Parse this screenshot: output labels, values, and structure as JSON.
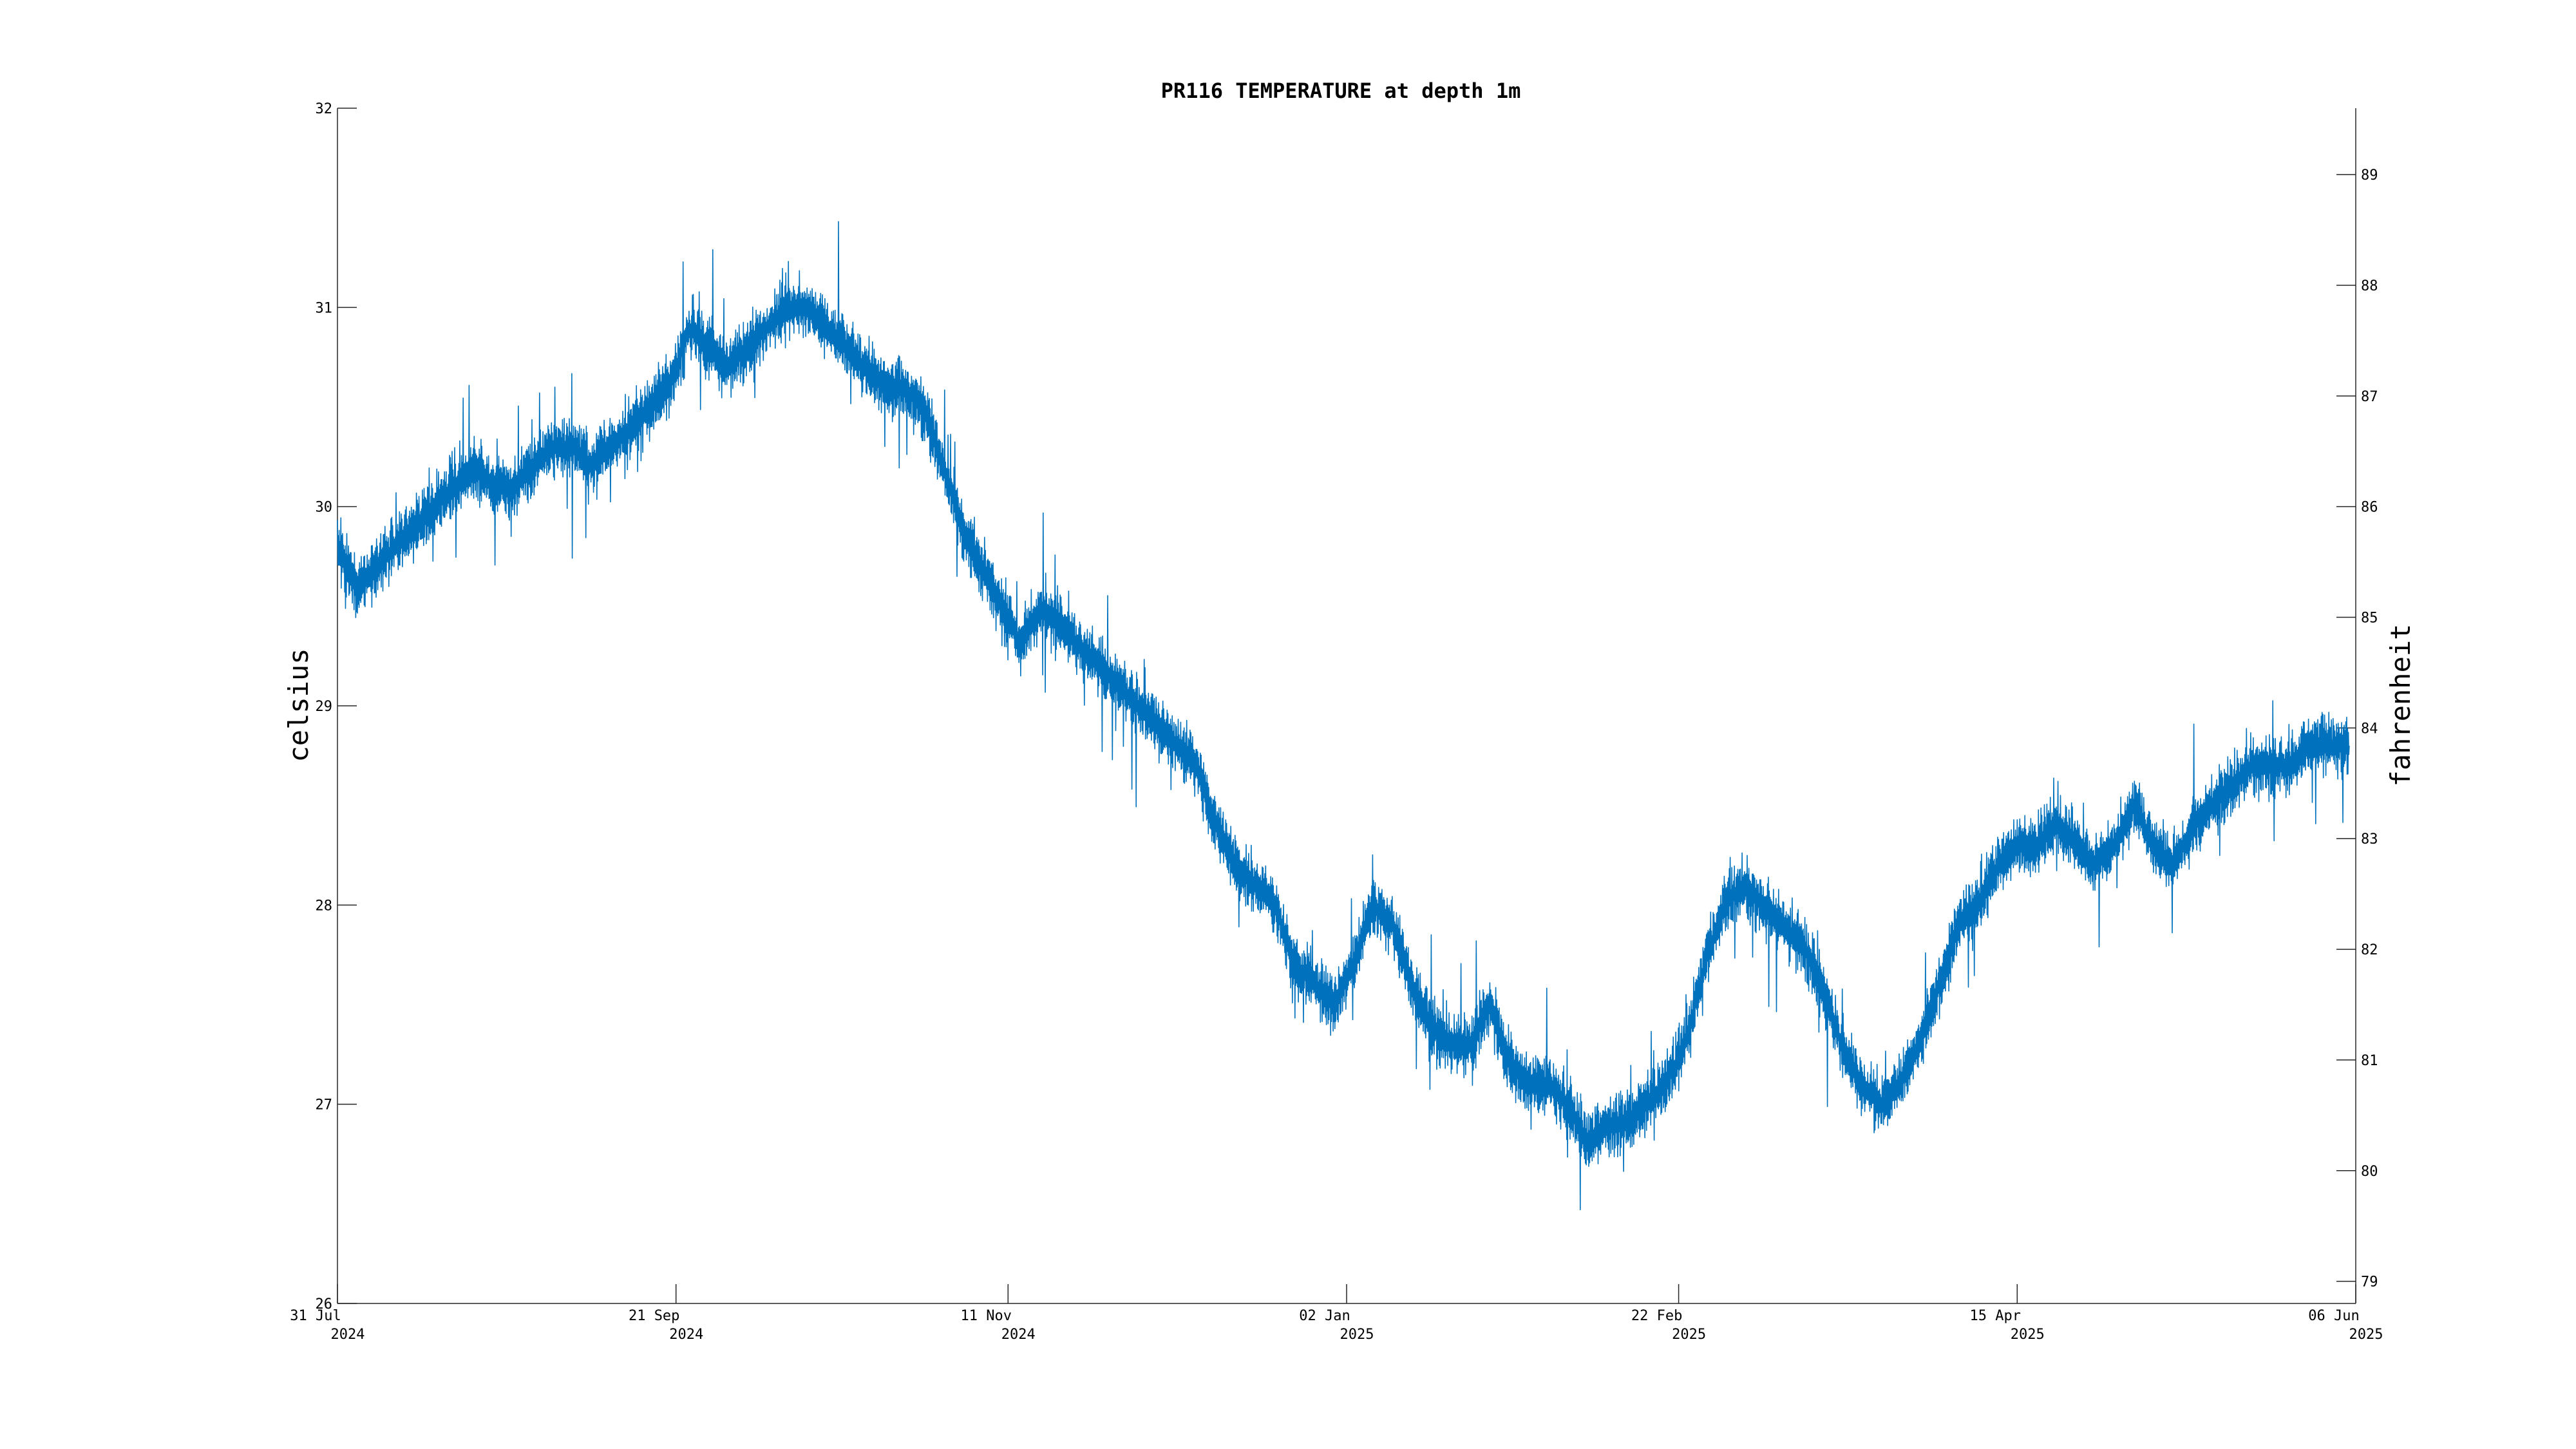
{
  "chart_data": {
    "type": "line",
    "title": "PR116 TEMPERATURE at depth 1m",
    "ylabel": "celsius",
    "ylabel_right": "fahrenheit",
    "xlabel": "",
    "grid": false,
    "x_range": [
      "2024-07-31",
      "2025-06-06"
    ],
    "ylim": [
      26,
      32
    ],
    "ylim_right": [
      78.8,
      89.6
    ],
    "y_ticks": [
      26,
      27,
      28,
      29,
      30,
      31,
      32
    ],
    "y_right_ticks": [
      79,
      80,
      81,
      82,
      83,
      84,
      85,
      86,
      87,
      88,
      89
    ],
    "x_ticks": [
      {
        "date": "2024-07-31",
        "line1": "31 Jul",
        "line2": "2024"
      },
      {
        "date": "2024-09-21",
        "line1": "21 Sep",
        "line2": "2024"
      },
      {
        "date": "2024-11-11",
        "line1": "11 Nov",
        "line2": "2024"
      },
      {
        "date": "2025-01-02",
        "line1": "02 Jan",
        "line2": "2025"
      },
      {
        "date": "2025-02-22",
        "line1": "22 Feb",
        "line2": "2025"
      },
      {
        "date": "2025-04-15",
        "line1": "15 Apr",
        "line2": "2025"
      },
      {
        "date": "2025-06-06",
        "line1": "06 Jun",
        "line2": "2025"
      }
    ],
    "series": [
      {
        "color": "#0072bd",
        "x": [
          "2024-07-31",
          "2024-08-03",
          "2024-08-06",
          "2024-08-09",
          "2024-08-12",
          "2024-08-15",
          "2024-08-18",
          "2024-08-21",
          "2024-08-24",
          "2024-08-27",
          "2024-08-30",
          "2024-09-02",
          "2024-09-05",
          "2024-09-08",
          "2024-09-11",
          "2024-09-14",
          "2024-09-17",
          "2024-09-20",
          "2024-09-23",
          "2024-09-26",
          "2024-09-29",
          "2024-10-02",
          "2024-10-05",
          "2024-10-08",
          "2024-10-11",
          "2024-10-14",
          "2024-10-17",
          "2024-10-20",
          "2024-10-23",
          "2024-10-26",
          "2024-10-29",
          "2024-11-01",
          "2024-11-04",
          "2024-11-07",
          "2024-11-10",
          "2024-11-13",
          "2024-11-16",
          "2024-11-19",
          "2024-11-22",
          "2024-11-25",
          "2024-11-28",
          "2024-12-01",
          "2024-12-04",
          "2024-12-07",
          "2024-12-10",
          "2024-12-13",
          "2024-12-16",
          "2024-12-19",
          "2024-12-22",
          "2024-12-25",
          "2024-12-28",
          "2024-12-31",
          "2025-01-03",
          "2025-01-06",
          "2025-01-09",
          "2025-01-12",
          "2025-01-15",
          "2025-01-18",
          "2025-01-21",
          "2025-01-24",
          "2025-01-27",
          "2025-01-30",
          "2025-02-02",
          "2025-02-05",
          "2025-02-08",
          "2025-02-11",
          "2025-02-14",
          "2025-02-17",
          "2025-02-20",
          "2025-02-23",
          "2025-02-26",
          "2025-03-01",
          "2025-03-04",
          "2025-03-07",
          "2025-03-10",
          "2025-03-13",
          "2025-03-16",
          "2025-03-19",
          "2025-03-22",
          "2025-03-25",
          "2025-03-28",
          "2025-03-31",
          "2025-04-03",
          "2025-04-06",
          "2025-04-09",
          "2025-04-12",
          "2025-04-15",
          "2025-04-18",
          "2025-04-21",
          "2025-04-24",
          "2025-04-27",
          "2025-04-30",
          "2025-05-03",
          "2025-05-06",
          "2025-05-09",
          "2025-05-12",
          "2025-05-15",
          "2025-05-18",
          "2025-05-21",
          "2025-05-24",
          "2025-05-27",
          "2025-05-30",
          "2025-06-02",
          "2025-06-05"
        ],
        "y": [
          29.8,
          29.6,
          29.7,
          29.8,
          29.9,
          30.0,
          30.1,
          30.2,
          30.1,
          30.1,
          30.2,
          30.3,
          30.3,
          30.2,
          30.3,
          30.4,
          30.5,
          30.6,
          30.9,
          30.8,
          30.7,
          30.8,
          30.9,
          31.0,
          31.0,
          30.9,
          30.8,
          30.7,
          30.6,
          30.6,
          30.5,
          30.2,
          29.9,
          29.7,
          29.5,
          29.3,
          29.5,
          29.4,
          29.3,
          29.2,
          29.1,
          29.0,
          28.9,
          28.8,
          28.7,
          28.4,
          28.2,
          28.1,
          28.0,
          27.7,
          27.6,
          27.5,
          27.7,
          28.0,
          27.9,
          27.6,
          27.4,
          27.3,
          27.3,
          27.5,
          27.2,
          27.1,
          27.1,
          27.0,
          26.8,
          26.9,
          26.9,
          27.0,
          27.1,
          27.3,
          27.7,
          28.0,
          28.1,
          28.0,
          27.9,
          27.8,
          27.6,
          27.3,
          27.1,
          27.0,
          27.1,
          27.3,
          27.6,
          27.9,
          28.0,
          28.2,
          28.3,
          28.3,
          28.4,
          28.3,
          28.2,
          28.3,
          28.5,
          28.3,
          28.2,
          28.4,
          28.5,
          28.6,
          28.7,
          28.7,
          28.7,
          28.8,
          28.8,
          28.8
        ]
      }
    ]
  }
}
